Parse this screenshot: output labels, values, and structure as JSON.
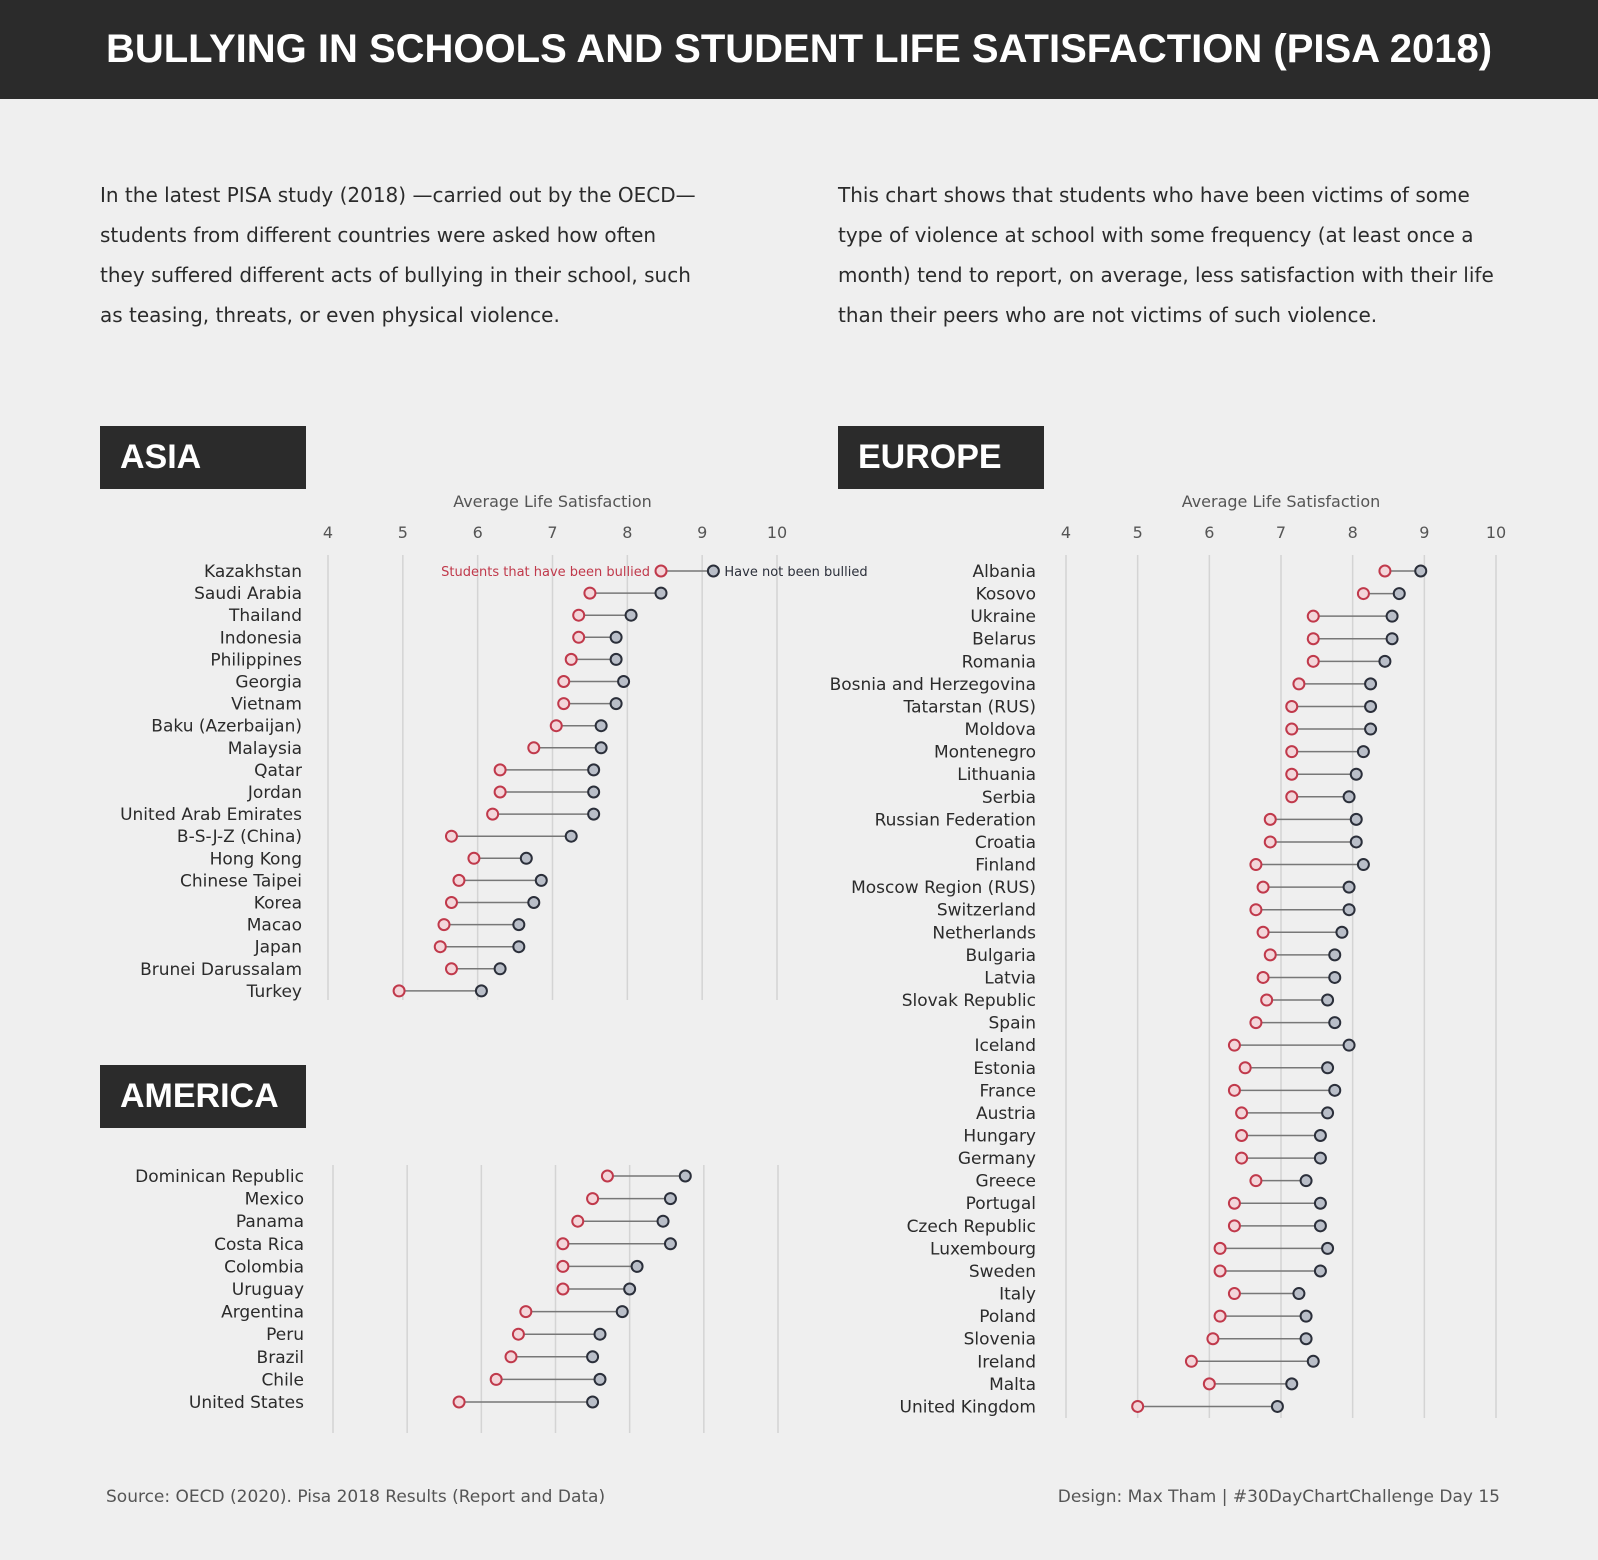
{
  "header": {
    "title": "BULLYING IN SCHOOLS AND STUDENT LIFE SATISFACTION (PISA 2018)"
  },
  "intro": {
    "left": "In the latest PISA study (2018) —carried out by the OECD— students from different countries were asked how often they suffered different acts of bullying in their school, such as teasing, threats, or even physical violence.",
    "right": "This chart shows that students who have been victims of some type of violence at school with some frequency (at least once a month) tend to report, on average, less satisfaction with their life than their peers who are not victims of such violence."
  },
  "regions": {
    "asia": "ASIA",
    "europe": "EUROPE",
    "america": "AMERICA"
  },
  "footer": {
    "source": "Source: OECD (2020). Pisa 2018 Results (Report and Data)",
    "credit": "Design: Max Tham | #30DayChartChallenge Day 15"
  },
  "colors": {
    "bullied": "#c0394b",
    "not_bullied": "#2b2f3a",
    "not_bullied_fill": "#b9bec8",
    "bullied_fill": "#f3d6da",
    "connector": "#777777",
    "grid": "#d4d4d4"
  },
  "chart_data": [
    {
      "type": "dumbbell",
      "region": "Asia",
      "xlabel": "Average Life Satisfaction",
      "xlim": [
        4,
        10
      ],
      "xticks": [
        4,
        5,
        6,
        7,
        8,
        9,
        10
      ],
      "series_labels": {
        "bullied": "Students that have been bullied",
        "not_bullied": "Have not been bullied"
      },
      "categories": [
        "Kazakhstan",
        "Saudi Arabia",
        "Thailand",
        "Indonesia",
        "Philippines",
        "Georgia",
        "Vietnam",
        "Baku (Azerbaijan)",
        "Malaysia",
        "Qatar",
        "Jordan",
        "United Arab Emirates",
        "B-S-J-Z (China)",
        "Hong Kong",
        "Chinese Taipei",
        "Korea",
        "Macao",
        "Japan",
        "Brunei Darussalam",
        "Turkey"
      ],
      "series": [
        {
          "name": "Students that have been bullied",
          "values": [
            8.45,
            7.5,
            7.35,
            7.35,
            7.25,
            7.15,
            7.15,
            7.05,
            6.75,
            6.3,
            6.3,
            6.2,
            5.65,
            5.95,
            5.75,
            5.65,
            5.55,
            5.5,
            5.65,
            4.95
          ]
        },
        {
          "name": "Have not been bullied",
          "values": [
            9.15,
            8.45,
            8.05,
            7.85,
            7.85,
            7.95,
            7.85,
            7.65,
            7.65,
            7.55,
            7.55,
            7.55,
            7.25,
            6.65,
            6.85,
            6.75,
            6.55,
            6.55,
            6.3,
            6.05
          ]
        }
      ]
    },
    {
      "type": "dumbbell",
      "region": "America",
      "xlabel": "",
      "xlim": [
        4,
        10
      ],
      "xticks": [
        4,
        5,
        6,
        7,
        8,
        9,
        10
      ],
      "categories": [
        "Dominican Republic",
        "Mexico",
        "Panama",
        "Costa Rica",
        "Colombia",
        "Uruguay",
        "Argentina",
        "Peru",
        "Brazil",
        "Chile",
        "United States"
      ],
      "series": [
        {
          "name": "Students that have been bullied",
          "values": [
            7.7,
            7.5,
            7.3,
            7.1,
            7.1,
            7.1,
            6.6,
            6.5,
            6.4,
            6.2,
            5.7
          ]
        },
        {
          "name": "Have not been bullied",
          "values": [
            8.75,
            8.55,
            8.45,
            8.55,
            8.1,
            8.0,
            7.9,
            7.6,
            7.5,
            7.6,
            7.5
          ]
        }
      ]
    },
    {
      "type": "dumbbell",
      "region": "Europe",
      "xlabel": "Average Life Satisfaction",
      "xlim": [
        4,
        10
      ],
      "xticks": [
        4,
        5,
        6,
        7,
        8,
        9,
        10
      ],
      "categories": [
        "Albania",
        "Kosovo",
        "Ukraine",
        "Belarus",
        "Romania",
        "Bosnia and Herzegovina",
        "Tatarstan (RUS)",
        "Moldova",
        "Montenegro",
        "Lithuania",
        "Serbia",
        "Russian Federation",
        "Croatia",
        "Finland",
        "Moscow Region (RUS)",
        "Switzerland",
        "Netherlands",
        "Bulgaria",
        "Latvia",
        "Slovak Republic",
        "Spain",
        "Iceland",
        "Estonia",
        "France",
        "Austria",
        "Hungary",
        "Germany",
        "Greece",
        "Portugal",
        "Czech Republic",
        "Luxembourg",
        "Sweden",
        "Italy",
        "Poland",
        "Slovenia",
        "Ireland",
        "Malta",
        "United Kingdom"
      ],
      "series": [
        {
          "name": "Students that have been bullied",
          "values": [
            8.45,
            8.15,
            7.45,
            7.45,
            7.45,
            7.25,
            7.15,
            7.15,
            7.15,
            7.15,
            7.15,
            6.85,
            6.85,
            6.65,
            6.75,
            6.65,
            6.75,
            6.85,
            6.75,
            6.8,
            6.65,
            6.35,
            6.5,
            6.35,
            6.45,
            6.45,
            6.45,
            6.65,
            6.35,
            6.35,
            6.15,
            6.15,
            6.35,
            6.15,
            6.05,
            5.75,
            6.0,
            5.0
          ]
        },
        {
          "name": "Have not been bullied",
          "values": [
            8.95,
            8.65,
            8.55,
            8.55,
            8.45,
            8.25,
            8.25,
            8.25,
            8.15,
            8.05,
            7.95,
            8.05,
            8.05,
            8.15,
            7.95,
            7.95,
            7.85,
            7.75,
            7.75,
            7.65,
            7.75,
            7.95,
            7.65,
            7.75,
            7.65,
            7.55,
            7.55,
            7.35,
            7.55,
            7.55,
            7.65,
            7.55,
            7.25,
            7.35,
            7.35,
            7.45,
            7.15,
            6.95
          ]
        }
      ]
    }
  ]
}
